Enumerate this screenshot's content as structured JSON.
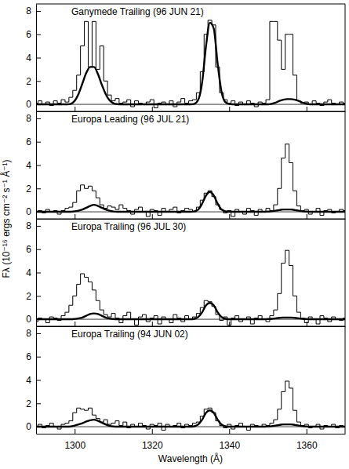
{
  "chart_data": [
    {
      "type": "line",
      "title": "Ganymede Trailing (96 JUN 21)",
      "ylabel": "Fλ (10⁻¹⁶ ergs cm⁻² s⁻¹ Å⁻¹)",
      "tick_labels": "y",
      "xlim": [
        1290,
        1370
      ],
      "xticks": [
        1300,
        1320,
        1340,
        1360
      ],
      "ylim": [
        -0.6,
        8.6
      ],
      "yticks": [
        0,
        2,
        4,
        6,
        8
      ],
      "x": [
        1290,
        1291,
        1292,
        1293,
        1294,
        1295,
        1296,
        1297,
        1298,
        1299,
        1300,
        1301,
        1302,
        1303,
        1304,
        1305,
        1306,
        1307,
        1308,
        1309,
        1310,
        1311,
        1312,
        1313,
        1314,
        1315,
        1316,
        1317,
        1318,
        1319,
        1320,
        1321,
        1322,
        1323,
        1324,
        1325,
        1326,
        1327,
        1328,
        1329,
        1330,
        1331,
        1332,
        1333,
        1334,
        1335,
        1336,
        1337,
        1338,
        1339,
        1340,
        1341,
        1342,
        1343,
        1344,
        1345,
        1346,
        1347,
        1348,
        1349,
        1350,
        1351,
        1352,
        1353,
        1354,
        1355,
        1356,
        1357,
        1358,
        1359,
        1360,
        1361,
        1362,
        1363,
        1364,
        1365,
        1366,
        1367,
        1368,
        1369,
        1370
      ],
      "series": [
        {
          "color": "#000000",
          "line_style": "steps",
          "values": [
            0.1,
            0.3,
            0.0,
            0.2,
            -0.1,
            0.3,
            0.1,
            0.4,
            0.2,
            0.6,
            1.2,
            2.5,
            5.0,
            7.1,
            3.2,
            7.1,
            3.0,
            5.0,
            2.0,
            0.8,
            0.3,
            0.5,
            0.1,
            0.2,
            0.4,
            -0.2,
            0.3,
            0.1,
            0.0,
            0.2,
            0.4,
            -0.3,
            0.1,
            0.2,
            0.0,
            0.3,
            -0.2,
            0.2,
            0.5,
            0.1,
            0.3,
            0.4,
            1.0,
            2.8,
            6.0,
            7.2,
            6.8,
            3.2,
            1.0,
            0.4,
            0.1,
            0.3,
            -0.1,
            0.2,
            0.0,
            0.3,
            0.1,
            -0.2,
            0.2,
            0.1,
            0.4,
            7.1,
            7.1,
            5.5,
            3.0,
            6.0,
            6.0,
            2.5,
            0.3,
            0.1,
            0.2,
            0.0,
            0.3,
            0.1,
            -0.1,
            0.2,
            0.4,
            0.1,
            0.0,
            0.2,
            0.1
          ]
        },
        {
          "color": "#000000",
          "line_style": "solid",
          "values": [
            0,
            0,
            0,
            0,
            0,
            0,
            0,
            0,
            0,
            0.05,
            0.3,
            0.9,
            1.8,
            2.7,
            3.2,
            3.2,
            2.6,
            1.7,
            0.9,
            0.35,
            0.1,
            0.02,
            0,
            0,
            0,
            0,
            0,
            0,
            0,
            0,
            0,
            0,
            0,
            0,
            0,
            0,
            0,
            0,
            0,
            0,
            0,
            0.05,
            0.4,
            1.9,
            5.0,
            7.0,
            6.5,
            3.5,
            1.1,
            0.2,
            0.03,
            0,
            0,
            0,
            0,
            0,
            0,
            0,
            0,
            0,
            0,
            0.05,
            0.15,
            0.3,
            0.4,
            0.45,
            0.45,
            0.4,
            0.3,
            0.15,
            0.05,
            0,
            0,
            0,
            0,
            0,
            0,
            0,
            0,
            0,
            0
          ]
        }
      ]
    },
    {
      "type": "line",
      "title": "Europa Leading (96 JUL 21)",
      "tick_labels": "y",
      "xlim": [
        1290,
        1370
      ],
      "xticks": [
        1300,
        1320,
        1340,
        1360
      ],
      "ylim": [
        -0.6,
        8.6
      ],
      "yticks": [
        0,
        2,
        4,
        6,
        8
      ],
      "x": [
        1290,
        1291,
        1292,
        1293,
        1294,
        1295,
        1296,
        1297,
        1298,
        1299,
        1300,
        1301,
        1302,
        1303,
        1304,
        1305,
        1306,
        1307,
        1308,
        1309,
        1310,
        1311,
        1312,
        1313,
        1314,
        1315,
        1316,
        1317,
        1318,
        1319,
        1320,
        1321,
        1322,
        1323,
        1324,
        1325,
        1326,
        1327,
        1328,
        1329,
        1330,
        1331,
        1332,
        1333,
        1334,
        1335,
        1336,
        1337,
        1338,
        1339,
        1340,
        1341,
        1342,
        1343,
        1344,
        1345,
        1346,
        1347,
        1348,
        1349,
        1350,
        1351,
        1352,
        1353,
        1354,
        1355,
        1356,
        1357,
        1358,
        1359,
        1360,
        1361,
        1362,
        1363,
        1364,
        1365,
        1366,
        1367,
        1368,
        1369,
        1370
      ],
      "series": [
        {
          "color": "#000000",
          "line_style": "steps",
          "values": [
            0.0,
            0.1,
            -0.1,
            0.2,
            0.0,
            0.1,
            -0.2,
            0.1,
            0.3,
            0.4,
            0.8,
            1.8,
            2.3,
            2.0,
            2.2,
            1.8,
            1.2,
            0.6,
            0.3,
            0.5,
            0.4,
            0.2,
            0.6,
            0.3,
            0.1,
            -0.2,
            0.2,
            0.4,
            0.0,
            -0.4,
            0.2,
            0.1,
            -0.3,
            0.3,
            0.0,
            0.2,
            0.4,
            -0.1,
            0.1,
            0.3,
            0.2,
            0.0,
            0.4,
            1.0,
            1.6,
            1.8,
            1.3,
            0.6,
            0.2,
            -0.1,
            0.1,
            -0.4,
            0.2,
            0.0,
            -0.2,
            0.3,
            0.1,
            -0.3,
            0.2,
            0.0,
            0.3,
            0.1,
            0.6,
            2.0,
            4.6,
            5.8,
            4.2,
            1.8,
            0.5,
            0.1,
            0.2,
            -0.2,
            0.0,
            0.3,
            -0.3,
            0.1,
            0.2,
            -0.1,
            0.0,
            0.2,
            0.1
          ]
        },
        {
          "color": "#000000",
          "line_style": "solid",
          "values": [
            0,
            0,
            0,
            0,
            0,
            0,
            0,
            0,
            0,
            0,
            0.05,
            0.1,
            0.2,
            0.35,
            0.5,
            0.6,
            0.5,
            0.35,
            0.2,
            0.1,
            0.03,
            0,
            0,
            0,
            0,
            0,
            0,
            0,
            0,
            0,
            0,
            0,
            0,
            0,
            0,
            0,
            0,
            0,
            0,
            0,
            0,
            0.05,
            0.2,
            0.7,
            1.4,
            1.7,
            1.4,
            0.7,
            0.2,
            0.05,
            0,
            0,
            0,
            0,
            0,
            0,
            0,
            0,
            0,
            0,
            0.02,
            0.05,
            0.1,
            0.15,
            0.2,
            0.2,
            0.2,
            0.15,
            0.1,
            0.05,
            0.02,
            0,
            0,
            0,
            0,
            0,
            0,
            0,
            0,
            0,
            0
          ]
        }
      ]
    },
    {
      "type": "line",
      "title": "Europa Trailing (96 JUL 30)",
      "tick_labels": "y",
      "xlim": [
        1290,
        1370
      ],
      "xticks": [
        1300,
        1320,
        1340,
        1360
      ],
      "ylim": [
        -0.6,
        8.6
      ],
      "yticks": [
        0,
        2,
        4,
        6,
        8
      ],
      "x": [
        1290,
        1291,
        1292,
        1293,
        1294,
        1295,
        1296,
        1297,
        1298,
        1299,
        1300,
        1301,
        1302,
        1303,
        1304,
        1305,
        1306,
        1307,
        1308,
        1309,
        1310,
        1311,
        1312,
        1313,
        1314,
        1315,
        1316,
        1317,
        1318,
        1319,
        1320,
        1321,
        1322,
        1323,
        1324,
        1325,
        1326,
        1327,
        1328,
        1329,
        1330,
        1331,
        1332,
        1333,
        1334,
        1335,
        1336,
        1337,
        1338,
        1339,
        1340,
        1341,
        1342,
        1343,
        1344,
        1345,
        1346,
        1347,
        1348,
        1349,
        1350,
        1351,
        1352,
        1353,
        1354,
        1355,
        1356,
        1357,
        1358,
        1359,
        1360,
        1361,
        1362,
        1363,
        1364,
        1365,
        1366,
        1367,
        1368,
        1369,
        1370
      ],
      "series": [
        {
          "color": "#000000",
          "line_style": "steps",
          "values": [
            -0.2,
            0.1,
            0.0,
            -0.3,
            0.2,
            0.1,
            -0.1,
            0.3,
            0.6,
            1.2,
            2.0,
            3.0,
            3.9,
            3.6,
            3.2,
            2.5,
            1.6,
            0.8,
            0.4,
            0.2,
            0.5,
            0.1,
            -0.3,
            0.3,
            0.6,
            0.0,
            -0.5,
            0.2,
            0.4,
            -0.2,
            0.1,
            0.3,
            -0.4,
            0.2,
            0.0,
            -0.3,
            0.4,
            0.1,
            -0.2,
            0.3,
            0.0,
            0.2,
            0.5,
            1.0,
            1.6,
            1.5,
            1.1,
            0.4,
            -0.1,
            0.2,
            -0.5,
            0.1,
            0.3,
            -0.2,
            0.0,
            0.2,
            -0.4,
            0.1,
            0.3,
            0.0,
            -0.2,
            0.3,
            0.8,
            2.2,
            4.8,
            5.9,
            4.6,
            2.0,
            0.6,
            0.1,
            -0.3,
            0.2,
            0.0,
            -0.4,
            0.3,
            0.1,
            -0.2,
            0.2,
            0.0,
            -0.1,
            0.1
          ]
        },
        {
          "color": "#000000",
          "line_style": "solid",
          "values": [
            0,
            0,
            0,
            0,
            0,
            0,
            0,
            0,
            0,
            0,
            0.03,
            0.08,
            0.15,
            0.3,
            0.45,
            0.5,
            0.45,
            0.3,
            0.15,
            0.06,
            0.02,
            0,
            0,
            0,
            0,
            0,
            0,
            0,
            0,
            0,
            0,
            0,
            0,
            0,
            0,
            0,
            0,
            0,
            0,
            0,
            0,
            0.04,
            0.2,
            0.6,
            1.2,
            1.4,
            1.2,
            0.6,
            0.2,
            0.04,
            0,
            0,
            0,
            0,
            0,
            0,
            0,
            0,
            0,
            0,
            0.02,
            0.04,
            0.08,
            0.12,
            0.15,
            0.15,
            0.15,
            0.12,
            0.08,
            0.04,
            0.02,
            0,
            0,
            0,
            0,
            0,
            0,
            0,
            0,
            0,
            0
          ]
        }
      ]
    },
    {
      "type": "line",
      "title": "Europa Trailing (94 JUN 02)",
      "xlabel": "Wavelength (Å)",
      "xlim": [
        1290,
        1370
      ],
      "xticks": [
        1300,
        1320,
        1340,
        1360
      ],
      "ylim": [
        -0.6,
        8.6
      ],
      "yticks": [
        0,
        2,
        4,
        6,
        8
      ],
      "x": [
        1290,
        1291,
        1292,
        1293,
        1294,
        1295,
        1296,
        1297,
        1298,
        1299,
        1300,
        1301,
        1302,
        1303,
        1304,
        1305,
        1306,
        1307,
        1308,
        1309,
        1310,
        1311,
        1312,
        1313,
        1314,
        1315,
        1316,
        1317,
        1318,
        1319,
        1320,
        1321,
        1322,
        1323,
        1324,
        1325,
        1326,
        1327,
        1328,
        1329,
        1330,
        1331,
        1332,
        1333,
        1334,
        1335,
        1336,
        1337,
        1338,
        1339,
        1340,
        1341,
        1342,
        1343,
        1344,
        1345,
        1346,
        1347,
        1348,
        1349,
        1350,
        1351,
        1352,
        1353,
        1354,
        1355,
        1356,
        1357,
        1358,
        1359,
        1360,
        1361,
        1362,
        1363,
        1364,
        1365,
        1366,
        1367,
        1368,
        1369,
        1370
      ],
      "series": [
        {
          "color": "#000000",
          "line_style": "steps",
          "values": [
            0.0,
            0.2,
            -0.1,
            0.1,
            0.3,
            0.0,
            -0.2,
            0.2,
            0.3,
            0.5,
            1.2,
            1.6,
            1.5,
            1.4,
            1.6,
            1.0,
            0.7,
            0.4,
            0.6,
            0.2,
            0.3,
            0.5,
            0.1,
            0.4,
            -0.1,
            0.2,
            0.0,
            0.3,
            0.1,
            -0.2,
            0.2,
            0.1,
            0.3,
            -0.3,
            0.2,
            0.0,
            0.1,
            0.3,
            -0.1,
            0.2,
            0.1,
            0.3,
            0.4,
            0.9,
            1.5,
            1.6,
            1.2,
            0.5,
            0.1,
            -0.1,
            0.2,
            -0.2,
            0.1,
            0.3,
            0.0,
            -0.3,
            0.2,
            0.1,
            0.0,
            0.2,
            0.1,
            0.3,
            0.6,
            1.5,
            3.0,
            3.9,
            3.3,
            1.4,
            0.4,
            0.1,
            0.2,
            -0.1,
            0.0,
            0.2,
            -0.2,
            0.1,
            0.0,
            0.2,
            -0.1,
            0.1,
            0.0
          ]
        },
        {
          "color": "#000000",
          "line_style": "solid",
          "values": [
            0,
            0,
            0,
            0,
            0,
            0,
            0,
            0,
            0,
            0.02,
            0.1,
            0.2,
            0.3,
            0.45,
            0.55,
            0.6,
            0.5,
            0.35,
            0.2,
            0.08,
            0.02,
            0,
            0,
            0,
            0,
            0,
            0,
            0,
            0,
            0,
            0,
            0,
            0,
            0,
            0,
            0,
            0,
            0,
            0,
            0,
            0,
            0.04,
            0.2,
            0.6,
            1.2,
            1.4,
            1.2,
            0.6,
            0.2,
            0.04,
            0,
            0,
            0,
            0,
            0,
            0,
            0,
            0,
            0,
            0,
            0.02,
            0.05,
            0.1,
            0.15,
            0.2,
            0.2,
            0.2,
            0.15,
            0.1,
            0.05,
            0.02,
            0,
            0,
            0,
            0,
            0,
            0,
            0,
            0,
            0,
            0
          ]
        }
      ]
    }
  ]
}
